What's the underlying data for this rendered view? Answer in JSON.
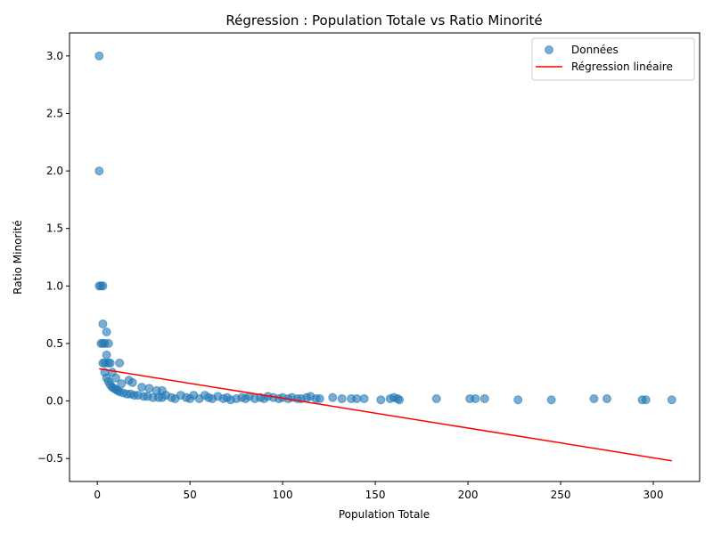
{
  "chart_data": {
    "type": "scatter",
    "title": "Régression : Population Totale vs Ratio Minorité",
    "xlabel": "Population Totale",
    "ylabel": "Ratio Minorité",
    "xlim": [
      -15,
      325
    ],
    "ylim": [
      -0.7,
      3.2
    ],
    "xticks": [
      0,
      50,
      100,
      150,
      200,
      250,
      300
    ],
    "yticks": [
      -0.5,
      0.0,
      0.5,
      1.0,
      1.5,
      2.0,
      2.5,
      3.0
    ],
    "xtick_labels": [
      "0",
      "50",
      "100",
      "150",
      "200",
      "250",
      "300"
    ],
    "ytick_labels": [
      "−0.5",
      "0.0",
      "0.5",
      "1.0",
      "1.5",
      "2.0",
      "2.5",
      "3.0"
    ],
    "grid": false,
    "legend_position": "top-right",
    "series": [
      {
        "name": "Données",
        "kind": "scatter",
        "color": "#1f77b4",
        "alpha": 0.6,
        "points": [
          [
            1,
            3.0
          ],
          [
            1,
            2.0
          ],
          [
            1,
            1.0
          ],
          [
            2,
            1.0
          ],
          [
            3,
            1.0
          ],
          [
            2,
            0.5
          ],
          [
            3,
            0.5
          ],
          [
            4,
            0.5
          ],
          [
            6,
            0.5
          ],
          [
            3,
            0.67
          ],
          [
            5,
            0.6
          ],
          [
            5,
            0.4
          ],
          [
            12,
            0.33
          ],
          [
            3,
            0.33
          ],
          [
            4,
            0.33
          ],
          [
            6,
            0.33
          ],
          [
            7,
            0.33
          ],
          [
            4,
            0.25
          ],
          [
            5,
            0.2
          ],
          [
            6,
            0.17
          ],
          [
            7,
            0.14
          ],
          [
            8,
            0.25
          ],
          [
            8,
            0.12
          ],
          [
            9,
            0.11
          ],
          [
            10,
            0.1
          ],
          [
            10,
            0.2
          ],
          [
            11,
            0.09
          ],
          [
            12,
            0.08
          ],
          [
            13,
            0.15
          ],
          [
            14,
            0.07
          ],
          [
            16,
            0.06
          ],
          [
            17,
            0.18
          ],
          [
            18,
            0.06
          ],
          [
            19,
            0.16
          ],
          [
            20,
            0.05
          ],
          [
            22,
            0.05
          ],
          [
            24,
            0.12
          ],
          [
            25,
            0.04
          ],
          [
            27,
            0.04
          ],
          [
            28,
            0.11
          ],
          [
            30,
            0.03
          ],
          [
            32,
            0.09
          ],
          [
            33,
            0.03
          ],
          [
            35,
            0.03
          ],
          [
            35,
            0.09
          ],
          [
            37,
            0.05
          ],
          [
            40,
            0.03
          ],
          [
            42,
            0.02
          ],
          [
            45,
            0.05
          ],
          [
            48,
            0.03
          ],
          [
            50,
            0.02
          ],
          [
            52,
            0.05
          ],
          [
            55,
            0.02
          ],
          [
            58,
            0.05
          ],
          [
            60,
            0.03
          ],
          [
            62,
            0.02
          ],
          [
            65,
            0.04
          ],
          [
            68,
            0.02
          ],
          [
            70,
            0.03
          ],
          [
            72,
            0.01
          ],
          [
            75,
            0.02
          ],
          [
            78,
            0.03
          ],
          [
            80,
            0.02
          ],
          [
            82,
            0.04
          ],
          [
            85,
            0.02
          ],
          [
            88,
            0.03
          ],
          [
            90,
            0.02
          ],
          [
            92,
            0.04
          ],
          [
            95,
            0.03
          ],
          [
            98,
            0.02
          ],
          [
            100,
            0.03
          ],
          [
            103,
            0.02
          ],
          [
            105,
            0.03
          ],
          [
            108,
            0.02
          ],
          [
            110,
            0.02
          ],
          [
            113,
            0.03
          ],
          [
            115,
            0.04
          ],
          [
            118,
            0.02
          ],
          [
            120,
            0.02
          ],
          [
            127,
            0.03
          ],
          [
            132,
            0.02
          ],
          [
            137,
            0.02
          ],
          [
            140,
            0.02
          ],
          [
            144,
            0.02
          ],
          [
            153,
            0.01
          ],
          [
            158,
            0.02
          ],
          [
            160,
            0.03
          ],
          [
            162,
            0.02
          ],
          [
            163,
            0.01
          ],
          [
            183,
            0.02
          ],
          [
            201,
            0.02
          ],
          [
            204,
            0.02
          ],
          [
            209,
            0.02
          ],
          [
            227,
            0.01
          ],
          [
            245,
            0.01
          ],
          [
            268,
            0.02
          ],
          [
            275,
            0.02
          ],
          [
            294,
            0.01
          ],
          [
            296,
            0.01
          ],
          [
            310,
            0.01
          ]
        ]
      },
      {
        "name": "Régression linéaire",
        "kind": "line",
        "color": "#ff0000",
        "points": [
          [
            1,
            0.28
          ],
          [
            310,
            -0.52
          ]
        ]
      }
    ]
  }
}
